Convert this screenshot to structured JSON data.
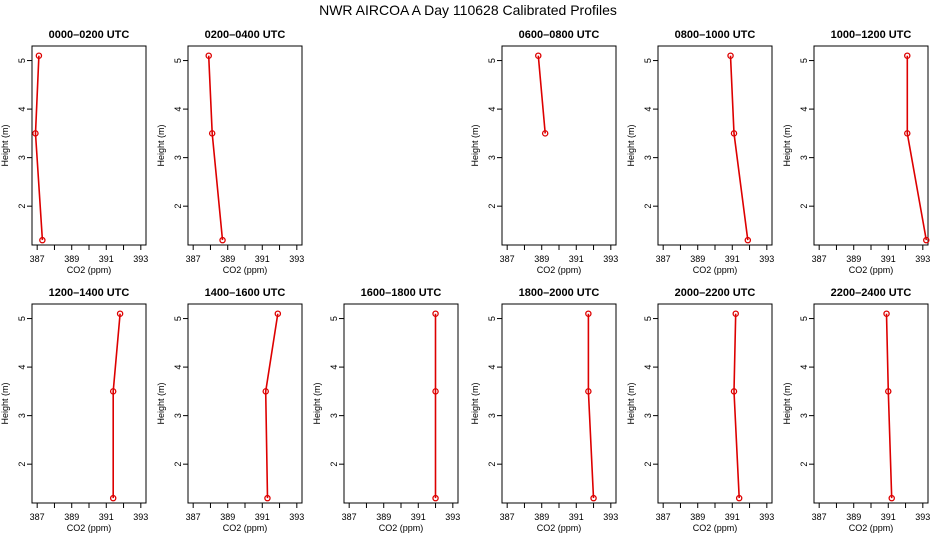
{
  "title": "NWR AIRCOA A  Day 110628  Calibrated Profiles",
  "chart_data": [
    {
      "type": "line",
      "title": "0000–0200 UTC",
      "xlabel": "CO2 (ppm)",
      "ylabel": "Height (m)",
      "xlim": [
        386.7,
        393.3
      ],
      "ylim": [
        1.2,
        5.3
      ],
      "xticks": [
        387,
        389,
        391,
        393
      ],
      "yticks": [
        2,
        3,
        4,
        5
      ],
      "color": "#dd0000",
      "series": [
        {
          "x": [
            387.3,
            386.9,
            387.1
          ],
          "y": [
            1.3,
            3.5,
            5.1
          ]
        }
      ]
    },
    {
      "type": "line",
      "title": "0200–0400 UTC",
      "xlabel": "CO2 (ppm)",
      "ylabel": "Height (m)",
      "xlim": [
        386.7,
        393.3
      ],
      "ylim": [
        1.2,
        5.3
      ],
      "xticks": [
        387,
        389,
        391,
        393
      ],
      "yticks": [
        2,
        3,
        4,
        5
      ],
      "color": "#dd0000",
      "series": [
        {
          "x": [
            388.7,
            388.1,
            387.9
          ],
          "y": [
            1.3,
            3.5,
            5.1
          ]
        }
      ]
    },
    null,
    {
      "type": "line",
      "title": "0600–0800 UTC",
      "xlabel": "CO2 (ppm)",
      "ylabel": "Height (m)",
      "xlim": [
        386.7,
        393.3
      ],
      "ylim": [
        1.2,
        5.3
      ],
      "xticks": [
        387,
        389,
        391,
        393
      ],
      "yticks": [
        2,
        3,
        4,
        5
      ],
      "color": "#dd0000",
      "series": [
        {
          "x": [
            389.2,
            388.8
          ],
          "y": [
            3.5,
            5.1
          ]
        }
      ]
    },
    {
      "type": "line",
      "title": "0800–1000 UTC",
      "xlabel": "CO2 (ppm)",
      "ylabel": "Height (m)",
      "xlim": [
        386.7,
        393.3
      ],
      "ylim": [
        1.2,
        5.3
      ],
      "xticks": [
        387,
        389,
        391,
        393
      ],
      "yticks": [
        2,
        3,
        4,
        5
      ],
      "color": "#dd0000",
      "series": [
        {
          "x": [
            391.9,
            391.1,
            390.9
          ],
          "y": [
            1.3,
            3.5,
            5.1
          ]
        }
      ]
    },
    {
      "type": "line",
      "title": "1000–1200 UTC",
      "xlabel": "CO2 (ppm)",
      "ylabel": "Height (m)",
      "xlim": [
        386.7,
        393.3
      ],
      "ylim": [
        1.2,
        5.3
      ],
      "xticks": [
        387,
        389,
        391,
        393
      ],
      "yticks": [
        2,
        3,
        4,
        5
      ],
      "color": "#dd0000",
      "series": [
        {
          "x": [
            393.2,
            392.1,
            392.1
          ],
          "y": [
            1.3,
            3.5,
            5.1
          ]
        }
      ]
    },
    {
      "type": "line",
      "title": "1200–1400 UTC",
      "xlabel": "CO2 (ppm)",
      "ylabel": "Height (m)",
      "xlim": [
        386.7,
        393.3
      ],
      "ylim": [
        1.2,
        5.3
      ],
      "xticks": [
        387,
        389,
        391,
        393
      ],
      "yticks": [
        2,
        3,
        4,
        5
      ],
      "color": "#dd0000",
      "series": [
        {
          "x": [
            391.4,
            391.4,
            391.8
          ],
          "y": [
            1.3,
            3.5,
            5.1
          ]
        }
      ]
    },
    {
      "type": "line",
      "title": "1400–1600 UTC",
      "xlabel": "CO2 (ppm)",
      "ylabel": "Height (m)",
      "xlim": [
        386.7,
        393.3
      ],
      "ylim": [
        1.2,
        5.3
      ],
      "xticks": [
        387,
        389,
        391,
        393
      ],
      "yticks": [
        2,
        3,
        4,
        5
      ],
      "color": "#dd0000",
      "series": [
        {
          "x": [
            391.3,
            391.2,
            391.9
          ],
          "y": [
            1.3,
            3.5,
            5.1
          ]
        }
      ]
    },
    {
      "type": "line",
      "title": "1600–1800 UTC",
      "xlabel": "CO2 (ppm)",
      "ylabel": "Height (m)",
      "xlim": [
        386.7,
        393.3
      ],
      "ylim": [
        1.2,
        5.3
      ],
      "xticks": [
        387,
        389,
        391,
        393
      ],
      "yticks": [
        2,
        3,
        4,
        5
      ],
      "color": "#dd0000",
      "series": [
        {
          "x": [
            392.0,
            392.0,
            392.0
          ],
          "y": [
            1.3,
            3.5,
            5.1
          ]
        }
      ]
    },
    {
      "type": "line",
      "title": "1800–2000 UTC",
      "xlabel": "CO2 (ppm)",
      "ylabel": "Height (m)",
      "xlim": [
        386.7,
        393.3
      ],
      "ylim": [
        1.2,
        5.3
      ],
      "xticks": [
        387,
        389,
        391,
        393
      ],
      "yticks": [
        2,
        3,
        4,
        5
      ],
      "color": "#dd0000",
      "series": [
        {
          "x": [
            392.0,
            391.7,
            391.7
          ],
          "y": [
            1.3,
            3.5,
            5.1
          ]
        }
      ]
    },
    {
      "type": "line",
      "title": "2000–2200 UTC",
      "xlabel": "CO2 (ppm)",
      "ylabel": "Height (m)",
      "xlim": [
        386.7,
        393.3
      ],
      "ylim": [
        1.2,
        5.3
      ],
      "xticks": [
        387,
        389,
        391,
        393
      ],
      "yticks": [
        2,
        3,
        4,
        5
      ],
      "color": "#dd0000",
      "series": [
        {
          "x": [
            391.4,
            391.1,
            391.2
          ],
          "y": [
            1.3,
            3.5,
            5.1
          ]
        }
      ]
    },
    {
      "type": "line",
      "title": "2200–2400 UTC",
      "xlabel": "CO2 (ppm)",
      "ylabel": "Height (m)",
      "xlim": [
        386.7,
        393.3
      ],
      "ylim": [
        1.2,
        5.3
      ],
      "xticks": [
        387,
        389,
        391,
        393
      ],
      "yticks": [
        2,
        3,
        4,
        5
      ],
      "color": "#dd0000",
      "series": [
        {
          "x": [
            391.2,
            391.0,
            390.9
          ],
          "y": [
            1.3,
            3.5,
            5.1
          ]
        }
      ]
    }
  ]
}
